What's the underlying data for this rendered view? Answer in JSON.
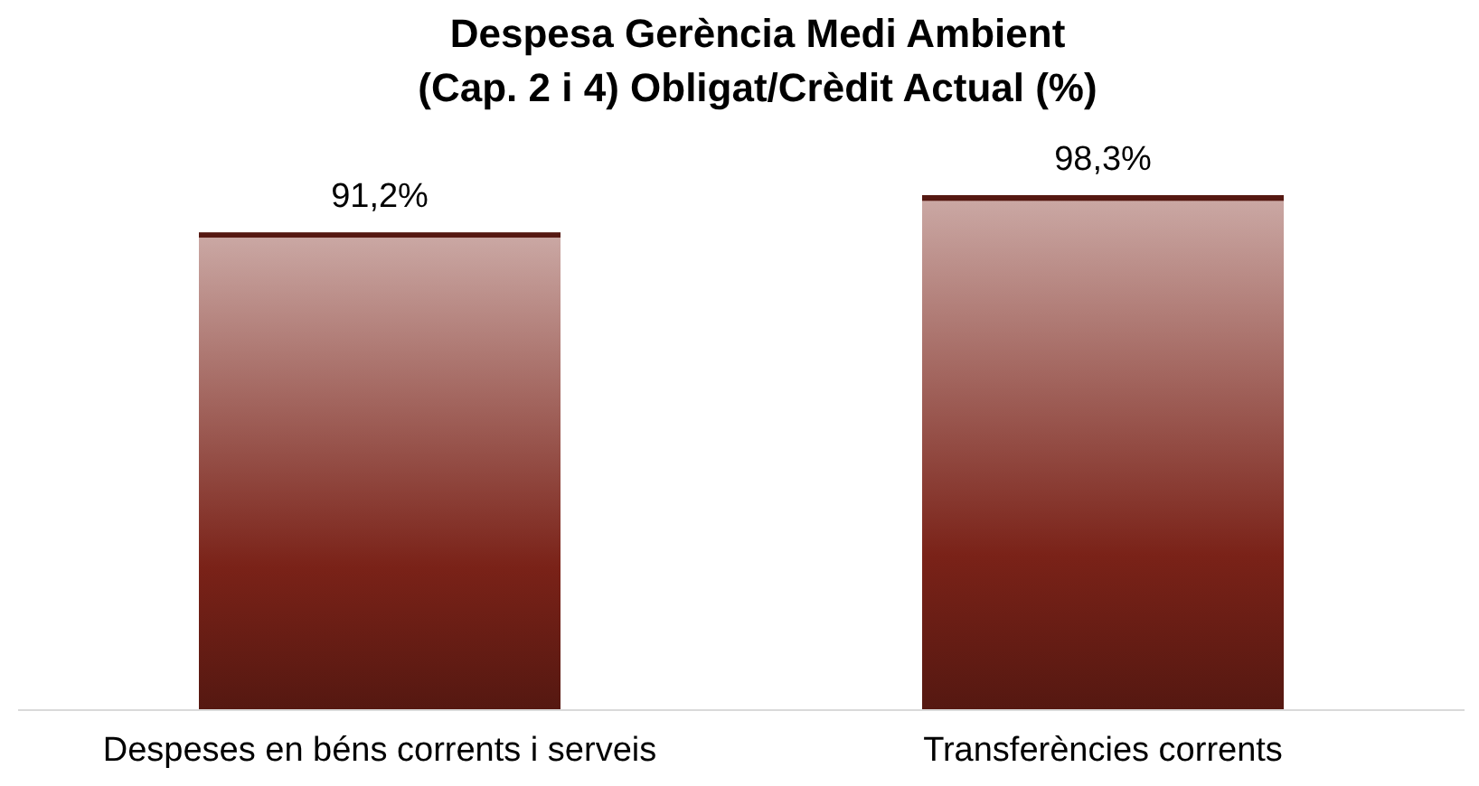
{
  "chart_data": {
    "type": "bar",
    "title": "Despesa Gerència Medi Ambient\n(Cap. 2 i 4) Obligat/Crèdit Actual (%)",
    "categories": [
      "Despeses en béns corrents i serveis",
      "Transferències corrents"
    ],
    "values": [
      91.2,
      98.3
    ],
    "value_labels": [
      "91,2%",
      "98,3%"
    ],
    "color": "#7a2218",
    "tick_labels": "x"
  }
}
